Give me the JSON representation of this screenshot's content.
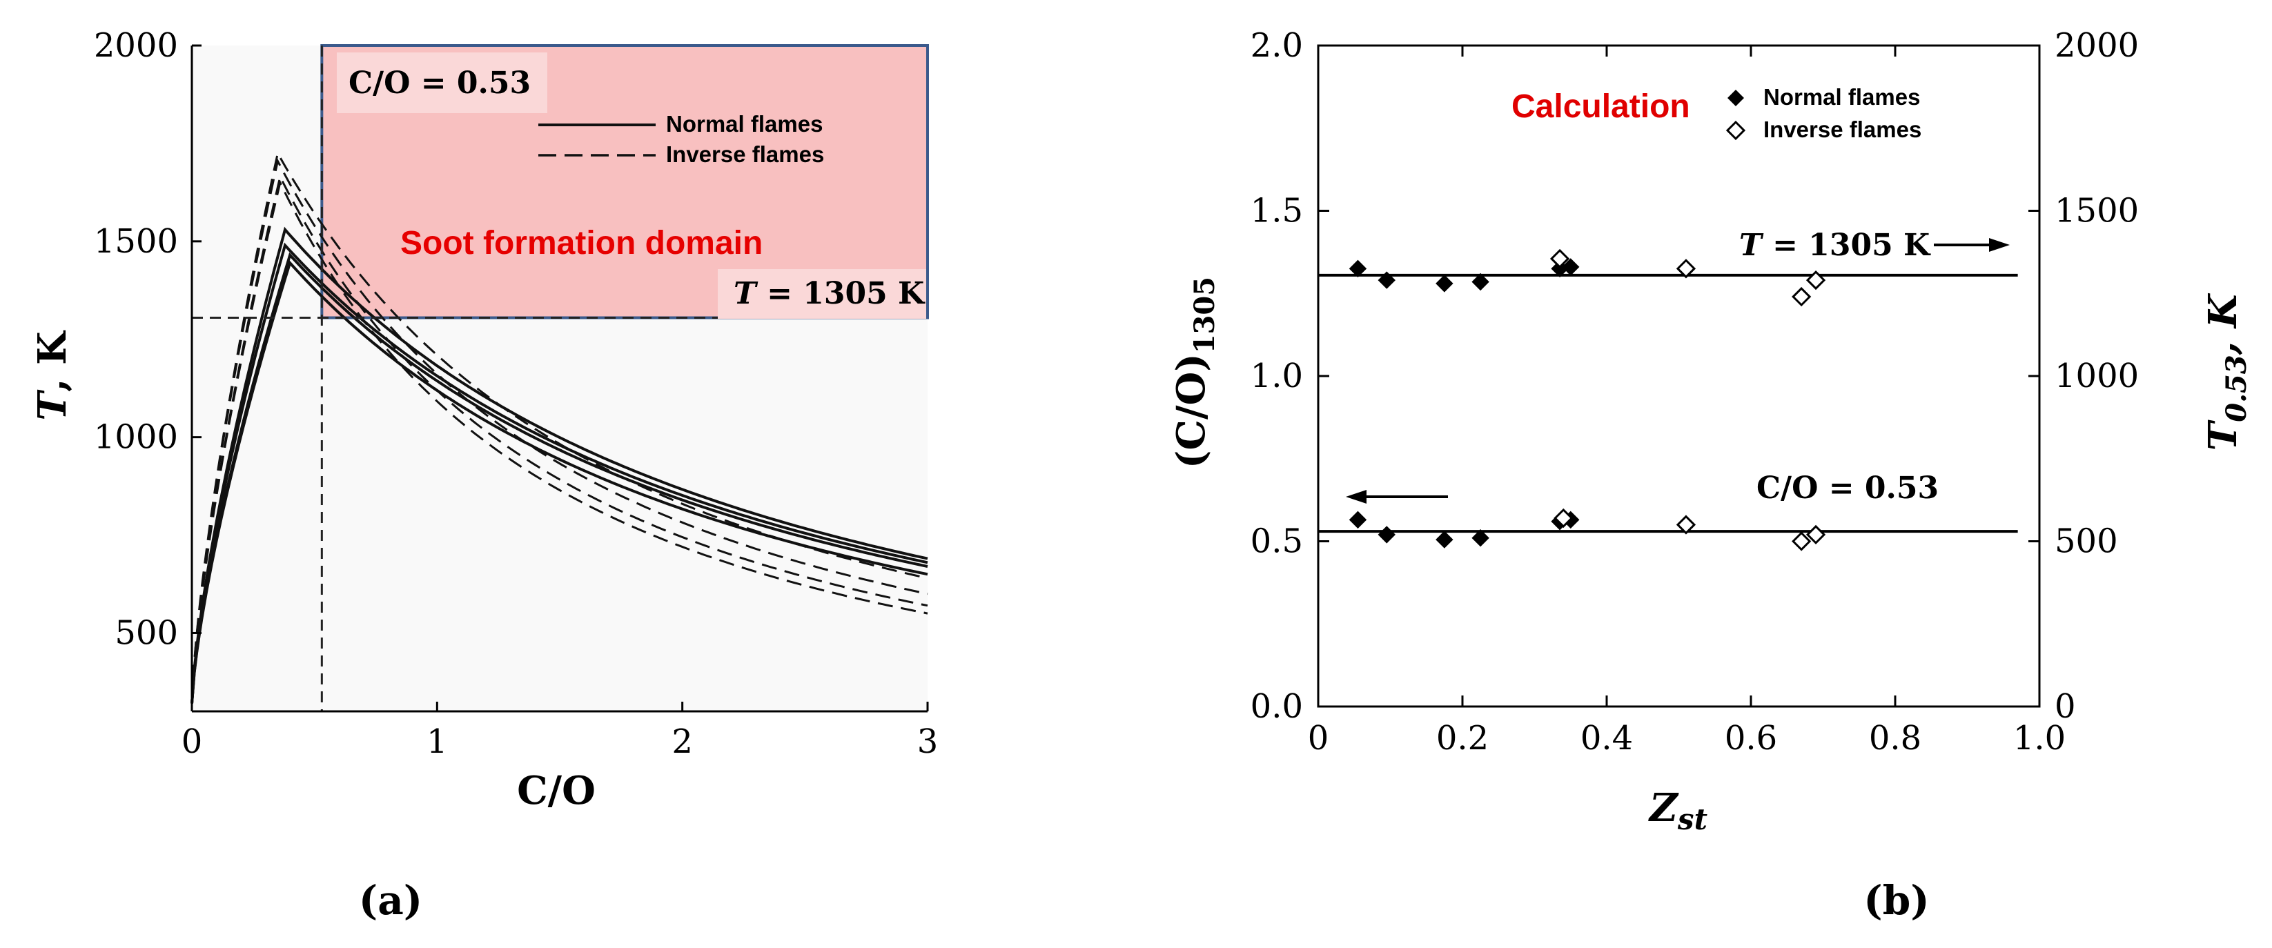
{
  "chart_data": [
    {
      "panel_label": "(a)",
      "type": "line",
      "xlabel": "C/O",
      "ylabel": {
        "var": "T",
        "rest": ", K"
      },
      "xlim": [
        0,
        3
      ],
      "ylim": [
        300,
        2000
      ],
      "xticks": [
        0,
        1,
        2,
        3
      ],
      "yticks": [
        500,
        1000,
        1500,
        2000
      ],
      "xtick_labels": [
        "0",
        "1",
        "2",
        "3"
      ],
      "ytick_labels": [
        "500",
        "1000",
        "1500",
        "2000"
      ],
      "legend": {
        "position": "top-right",
        "entries": [
          {
            "label": "Normal flames",
            "style": "solid"
          },
          {
            "label": "Inverse flames",
            "style": "dashed"
          }
        ]
      },
      "shaded_region": {
        "label": "Soot formation domain",
        "color": "#f8c0c0",
        "x": [
          0.53,
          3
        ],
        "y": [
          1305,
          2000
        ]
      },
      "reference_lines": [
        {
          "orientation": "vertical",
          "value": 0.53,
          "label": "C/O = 0.53"
        },
        {
          "orientation": "horizontal",
          "value": 1305,
          "label": {
            "var": "T",
            "rest": " = 1305 K"
          }
        }
      ],
      "series": [
        {
          "name": "Normal flames 1",
          "style": "solid",
          "peak": [
            0.38,
            1530
          ],
          "end": [
            3,
            690
          ]
        },
        {
          "name": "Normal flames 2",
          "style": "solid",
          "peak": [
            0.38,
            1490
          ],
          "end": [
            3,
            680
          ]
        },
        {
          "name": "Normal flames 3",
          "style": "solid",
          "peak": [
            0.4,
            1465
          ],
          "end": [
            3,
            670
          ]
        },
        {
          "name": "Normal flames 4",
          "style": "solid",
          "peak": [
            0.4,
            1445
          ],
          "end": [
            3,
            650
          ]
        },
        {
          "name": "Inverse flames 1",
          "style": "dashed",
          "peak": [
            0.35,
            1725
          ],
          "end": [
            3,
            640
          ]
        },
        {
          "name": "Inverse flames 2",
          "style": "dashed",
          "peak": [
            0.35,
            1705
          ],
          "end": [
            3,
            600
          ]
        },
        {
          "name": "Inverse flames 3",
          "style": "dashed",
          "peak": [
            0.36,
            1665
          ],
          "end": [
            3,
            570
          ]
        },
        {
          "name": "Inverse flames 4",
          "style": "dashed",
          "peak": [
            0.36,
            1650
          ],
          "end": [
            3,
            550
          ]
        }
      ]
    },
    {
      "panel_label": "(b)",
      "type": "scatter",
      "xlabel": {
        "main": "Z",
        "sub": "st"
      },
      "ylabel_left": {
        "main": "(C/O)",
        "sub": "1305"
      },
      "ylabel_right": {
        "main": "T",
        "sub": "0.53",
        "rest": ", K"
      },
      "xlim": [
        0,
        1.0
      ],
      "ylim_left": [
        0,
        2.0
      ],
      "ylim_right": [
        0,
        2000
      ],
      "xtick_labels": [
        "0",
        "0.2",
        "0.4",
        "0.6",
        "0.8",
        "1.0"
      ],
      "ytick_labels_left": [
        "0.0",
        "0.5",
        "1.0",
        "1.5",
        "2.0"
      ],
      "ytick_labels_right": [
        "0",
        "500",
        "1000",
        "1500",
        "2000"
      ],
      "legend": {
        "title": "Calculation",
        "title_color": "#e00000",
        "position": "top-right",
        "entries": [
          {
            "label": "Normal flames",
            "marker": "filled-diamond"
          },
          {
            "label": "Inverse flames",
            "marker": "open-diamond"
          }
        ]
      },
      "reference_lines": [
        {
          "value_right": 1305,
          "label": {
            "var": "T",
            "rest": " = 1305 K"
          },
          "arrow": "right"
        },
        {
          "value_left": 0.53,
          "label": "C/O = 0.53",
          "arrow": "left"
        }
      ],
      "series": [
        {
          "name": "Normal flames (C/O)1305",
          "marker": "filled-diamond",
          "x": [
            0.055,
            0.095,
            0.175,
            0.225,
            0.335,
            0.35
          ],
          "y": [
            0.565,
            0.52,
            0.505,
            0.51,
            0.56,
            0.565
          ]
        },
        {
          "name": "Normal flames T0.53",
          "marker": "filled-diamond",
          "x": [
            0.055,
            0.095,
            0.175,
            0.225,
            0.335,
            0.35
          ],
          "y_right": [
            1325,
            1290,
            1280,
            1285,
            1325,
            1330
          ]
        },
        {
          "name": "Inverse flames (C/O)1305",
          "marker": "open-diamond",
          "x": [
            0.34,
            0.51,
            0.67,
            0.69
          ],
          "y": [
            0.57,
            0.55,
            0.5,
            0.52
          ]
        },
        {
          "name": "Inverse flames T0.53",
          "marker": "open-diamond",
          "x": [
            0.335,
            0.51,
            0.67,
            0.69
          ],
          "y_right": [
            1355,
            1325,
            1240,
            1290
          ]
        }
      ]
    }
  ]
}
